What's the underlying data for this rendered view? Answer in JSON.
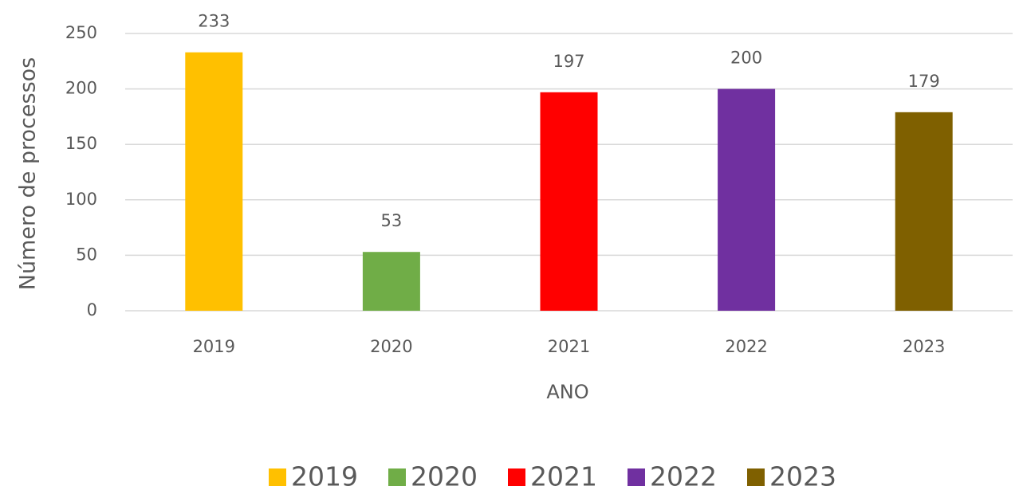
{
  "chart_data": {
    "type": "bar",
    "x_label": "ANO",
    "y_label": "Número de processos",
    "categories": [
      "2019",
      "2020",
      "2021",
      "2022",
      "2023"
    ],
    "values": [
      233,
      53,
      197,
      200,
      179
    ],
    "colors": [
      "#ffc000",
      "#70ad47",
      "#ff0000",
      "#7030a0",
      "#7f6000"
    ],
    "ylim": [
      0,
      250
    ],
    "yticks": [
      0,
      50,
      100,
      150,
      200,
      250
    ],
    "grid": true,
    "legend": "bottom"
  }
}
